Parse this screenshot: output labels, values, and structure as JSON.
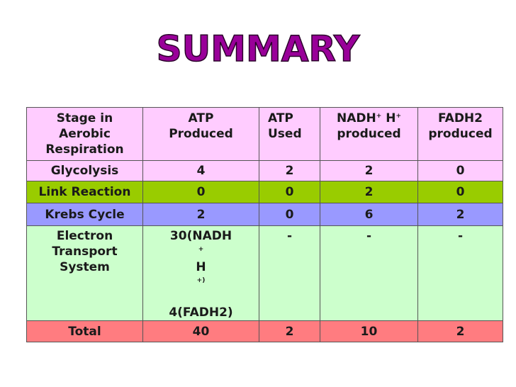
{
  "title": "SUMMARY",
  "colors": {
    "title_fill": "#990099",
    "title_stroke": "#2a002a"
  },
  "headers": {
    "stage": [
      "Stage in",
      "Aerobic",
      "Respiration"
    ],
    "atp_produced": [
      "ATP",
      "Produced"
    ],
    "atp_used": [
      "ATP",
      "Used"
    ],
    "nadh": {
      "main": "NADH",
      "sup1": "+",
      "mid": " H",
      "sup2": "+",
      "line2": "produced"
    },
    "fadh2": [
      "FADH2",
      "produced"
    ]
  },
  "rows": {
    "glycolysis": {
      "stage": "Glycolysis",
      "atp_produced": "4",
      "atp_used": "2",
      "nadh": "2",
      "fadh2": "0",
      "color": "#ffccff"
    },
    "link": {
      "stage": "Link Reaction",
      "atp_produced": "0",
      "atp_used": "0",
      "nadh": "2",
      "fadh2": "0",
      "color": "#99cc00"
    },
    "krebs": {
      "stage": "Krebs Cycle",
      "atp_produced": "2",
      "atp_used": "0",
      "nadh": "6",
      "fadh2": "2",
      "color": "#9999ff"
    },
    "ets": {
      "stage": [
        "Electron",
        "Transport",
        "System"
      ],
      "atp_produced": {
        "a": "30(NADH",
        "sup1": "+",
        "b": "H",
        "sup2": "+)",
        "line2": "4(FADH2)"
      },
      "atp_used": "-",
      "nadh": "-",
      "fadh2": "-",
      "color": "#ccffcc"
    },
    "total": {
      "stage": "Total",
      "atp_produced": "40",
      "atp_used": "2",
      "nadh": "10",
      "fadh2": "2",
      "color": "#ff7c80"
    }
  }
}
